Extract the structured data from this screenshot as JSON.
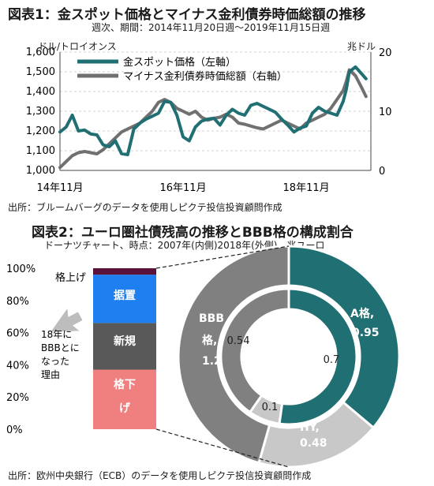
{
  "chart1": {
    "title": "図表1：金スポット価格とマイナス金利債券時価総額の推移",
    "subtitle": "週次、期間：2014年11月20日週〜2019年11月15日週",
    "left_unit": "ドル/トロイオンス",
    "right_unit": "兆ドル",
    "source": "出所：ブルームバーグのデータを使用しピクテ投信投資顧問作成"
  },
  "chart2": {
    "title": "図表2：ユーロ圏社債残高の推移とBBB格の構成割合",
    "subtitle": "ドーナツチャート、時点：2007年(内側)2018年(外側)、兆ユーロ",
    "source": "出所：欧州中央銀行（ECB）のデータを使用しピクテ投信投資顧問作成",
    "arrow_note": [
      "18年に",
      "BBBとに",
      "なった",
      "理由"
    ]
  },
  "chart_data": [
    {
      "type": "line",
      "title": "図表1：金スポット価格とマイナス金利債券時価総額の推移",
      "xlabel": "",
      "ylabel": "ドル/トロイオンス",
      "y2label": "兆ドル",
      "ylim": [
        1000,
        1600
      ],
      "y2lim": [
        0,
        20
      ],
      "yticks": [
        "1,000",
        "1,100",
        "1,200",
        "1,300",
        "1,400",
        "1,500",
        "1,600"
      ],
      "y2ticks": [
        "0",
        "10",
        "20"
      ],
      "xticks": [
        "14年11月",
        "16年11月",
        "18年11月"
      ],
      "grid": true,
      "legend": "top-left",
      "x": [
        2014.9,
        2015.0,
        2015.1,
        2015.2,
        2015.3,
        2015.4,
        2015.5,
        2015.6,
        2015.7,
        2015.8,
        2015.9,
        2016.0,
        2016.1,
        2016.2,
        2016.3,
        2016.4,
        2016.5,
        2016.6,
        2016.7,
        2016.8,
        2016.9,
        2017.0,
        2017.1,
        2017.2,
        2017.3,
        2017.4,
        2017.5,
        2017.6,
        2017.7,
        2017.8,
        2017.9,
        2018.0,
        2018.1,
        2018.2,
        2018.3,
        2018.4,
        2018.5,
        2018.6,
        2018.7,
        2018.8,
        2018.9,
        2019.0,
        2019.1,
        2019.2,
        2019.3,
        2019.4,
        2019.5,
        2019.55,
        2019.6,
        2019.7,
        2019.8,
        2019.87
      ],
      "series": [
        {
          "name": "金スポット価格（左軸）",
          "axis": "left",
          "color": "#1f6f73",
          "values": [
            1195,
            1220,
            1280,
            1200,
            1205,
            1185,
            1180,
            1130,
            1120,
            1150,
            1085,
            1080,
            1210,
            1240,
            1260,
            1275,
            1290,
            1350,
            1345,
            1280,
            1170,
            1150,
            1220,
            1250,
            1260,
            1265,
            1230,
            1280,
            1310,
            1290,
            1280,
            1330,
            1340,
            1325,
            1310,
            1295,
            1260,
            1230,
            1195,
            1215,
            1225,
            1290,
            1320,
            1300,
            1290,
            1280,
            1350,
            1410,
            1500,
            1525,
            1490,
            1465
          ]
        },
        {
          "name": "マイナス金利債券時価総額（右軸）",
          "axis": "right",
          "color": "#707070",
          "values": [
            0.5,
            1.5,
            2.5,
            3.0,
            3.2,
            3.0,
            2.8,
            3.5,
            4.5,
            5.5,
            6.5,
            7.0,
            7.5,
            8.0,
            9.0,
            10.0,
            11.5,
            12.0,
            11.5,
            10.5,
            10.0,
            9.5,
            10.0,
            9.0,
            8.5,
            8.8,
            9.0,
            9.5,
            9.0,
            8.0,
            7.8,
            7.5,
            7.2,
            7.0,
            7.5,
            8.0,
            8.5,
            8.0,
            7.5,
            7.0,
            8.0,
            8.5,
            9.0,
            9.5,
            10.5,
            12.0,
            13.5,
            15.0,
            17.0,
            16.0,
            14.0,
            12.5
          ]
        }
      ]
    },
    {
      "type": "bar",
      "stacked": true,
      "ylim": [
        0,
        100
      ],
      "yticks": [
        "0%",
        "20%",
        "40%",
        "60%",
        "80%",
        "100%"
      ],
      "segments": [
        {
          "label": "格下げ",
          "value": 37,
          "color": "#f08080"
        },
        {
          "label": "新規",
          "value": 29,
          "color": "#595959"
        },
        {
          "label": "据置",
          "value": 30,
          "color": "#1e7ff0"
        },
        {
          "label": "格上げ",
          "value": 4,
          "color": "#5a1238"
        }
      ]
    },
    {
      "type": "pie",
      "donut": true,
      "outer_ring": {
        "year": "2018",
        "slices": [
          {
            "label": "A格,",
            "value_label": "0.95",
            "value": 0.95,
            "color": "#1f6f73"
          },
          {
            "label": "HY,",
            "value_label": "0.48",
            "value": 0.48,
            "color": "#c8c8c8"
          },
          {
            "label": "BBB格,",
            "value_label": "1.2",
            "value": 1.2,
            "color": "#808080"
          }
        ]
      },
      "inner_ring": {
        "year": "2007",
        "slices": [
          {
            "label": "",
            "value_label": "0.7",
            "value": 0.7,
            "color": "#1f6f73"
          },
          {
            "label": "",
            "value_label": "0.1",
            "value": 0.1,
            "color": "#c8c8c8"
          },
          {
            "label": "",
            "value_label": "0.54",
            "value": 0.54,
            "color": "#808080"
          }
        ]
      }
    }
  ]
}
